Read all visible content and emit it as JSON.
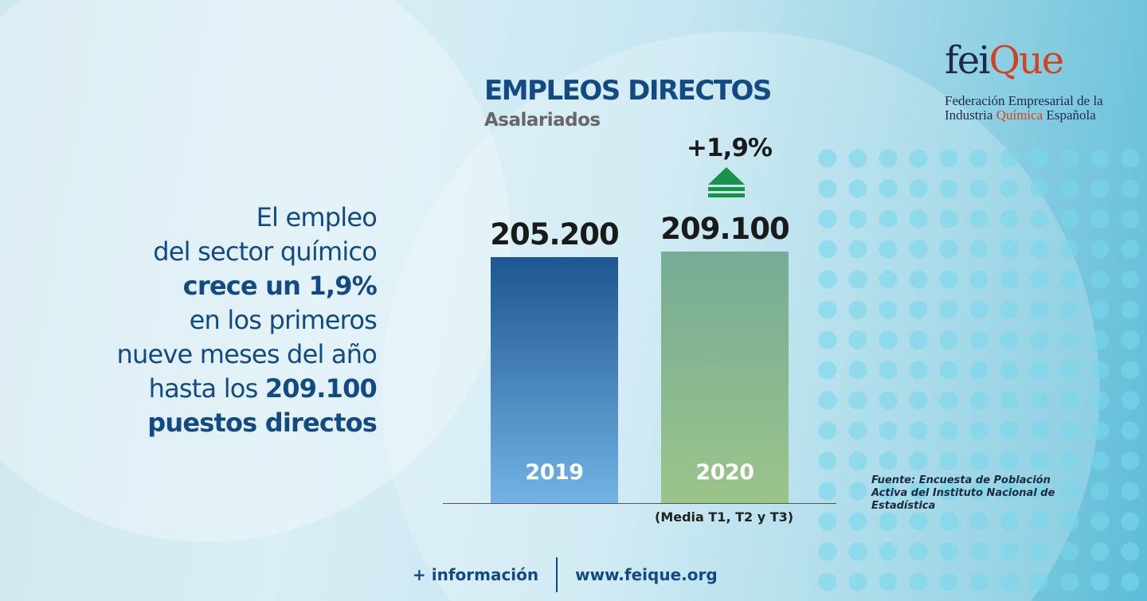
{
  "logo": {
    "word_a": "fei",
    "word_q": "Que",
    "line1": "Federación Empresarial de la",
    "line2_a": "Industria ",
    "line2_b": "Química",
    "line2_c": " Española"
  },
  "chart_data": {
    "type": "bar",
    "title": "EMPLEOS DIRECTOS",
    "subtitle": "Asalariados",
    "categories": [
      "2019",
      "2020"
    ],
    "values": [
      205200,
      209100
    ],
    "value_labels": [
      "205.200",
      "209.100"
    ],
    "colors": [
      "#2a6aa6",
      "#7fb598"
    ],
    "change_label": "+1,9%",
    "change_direction": "up",
    "change_color": "#17924a",
    "note": "(Media T1, T2 y T3)",
    "source": "Fuente: Encuesta de Población Activa del Instituto Nacional de Estadística"
  },
  "headline": {
    "l1": "El empleo",
    "l2": "del sector químico",
    "l3": "crece un 1,9%",
    "l4": "en los primeros",
    "l5": "nueve meses del año",
    "l6a": "hasta los ",
    "l6b": "209.100",
    "l7": "puestos directos"
  },
  "footer": {
    "info": "+ información",
    "url": "www.feique.org"
  }
}
